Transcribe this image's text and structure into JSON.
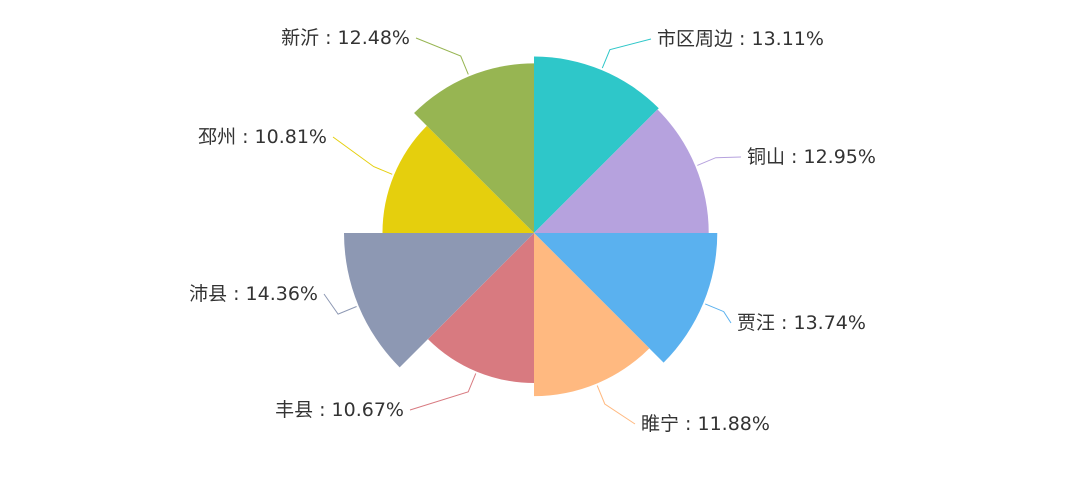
{
  "chart_data": {
    "type": "pie",
    "variant": "rose",
    "title": "",
    "slices": [
      {
        "name": "市区周边",
        "value": 13.11,
        "label": "市区周边 : 13.11%",
        "color": "#2ec7c9"
      },
      {
        "name": "铜山",
        "value": 12.95,
        "label": "铜山 : 12.95%",
        "color": "#b6a2de"
      },
      {
        "name": "贾汪",
        "value": 13.74,
        "label": "贾汪 : 13.74%",
        "color": "#5ab1ef"
      },
      {
        "name": "睢宁",
        "value": 11.88,
        "label": "睢宁 : 11.88%",
        "color": "#ffb980"
      },
      {
        "name": "丰县",
        "value": 10.67,
        "label": "丰县 : 10.67%",
        "color": "#d87a80"
      },
      {
        "name": "沛县",
        "value": 14.36,
        "label": "沛县 : 14.36%",
        "color": "#8d98b3"
      },
      {
        "name": "邳州",
        "value": 10.81,
        "label": "邳州 : 10.81%",
        "color": "#e5cf0d"
      },
      {
        "name": "新沂",
        "value": 12.48,
        "label": "新沂 : 12.48%",
        "color": "#97b552"
      }
    ]
  }
}
